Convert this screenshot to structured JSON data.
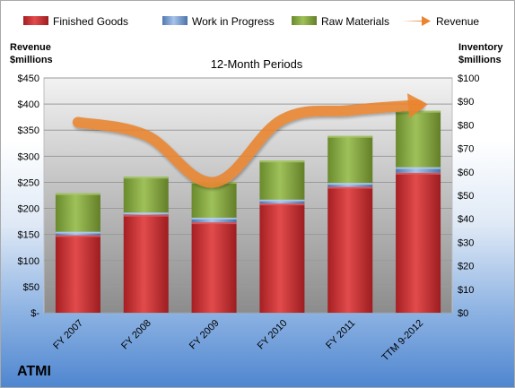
{
  "chart_data": {
    "type": "bar",
    "stacked": true,
    "title": "12-Month Periods",
    "company": "ATMI",
    "y_left_label": [
      "Revenue",
      "$millions"
    ],
    "y_right_label": [
      "Inventory",
      "$millions"
    ],
    "y_left_lim": [
      0,
      450
    ],
    "y_right_lim": [
      0,
      100
    ],
    "y_left_ticks": [
      "$-",
      "$50",
      "$100",
      "$150",
      "$200",
      "$250",
      "$300",
      "$350",
      "$400",
      "$450"
    ],
    "y_right_ticks": [
      "$0",
      "$10",
      "$20",
      "$30",
      "$40",
      "$50",
      "$60",
      "$70",
      "$80",
      "$90",
      "$100"
    ],
    "grid": true,
    "legend_position": "top",
    "categories": [
      "FY 2007",
      "FY 2008",
      "FY 2009",
      "FY 2010",
      "FY 2011",
      "TTM 9-2012"
    ],
    "series": [
      {
        "name": "Finished Goods",
        "axis": "right",
        "color": "#c0292b",
        "values": [
          33.0,
          41.7,
          38.5,
          46.5,
          53.6,
          59.6
        ]
      },
      {
        "name": "Work in Progress",
        "axis": "right",
        "color": "#6f97cc",
        "values": [
          1.5,
          1.0,
          2.0,
          1.7,
          1.7,
          2.4
        ]
      },
      {
        "name": "Raw Materials",
        "axis": "right",
        "color": "#84a83c",
        "values": [
          16.4,
          15.2,
          15.2,
          16.6,
          20.0,
          24.0
        ]
      },
      {
        "name": "Revenue",
        "axis": "left",
        "type": "line",
        "color": "#e9842f",
        "values": [
          365,
          340,
          250,
          370,
          388,
          398
        ]
      }
    ]
  }
}
